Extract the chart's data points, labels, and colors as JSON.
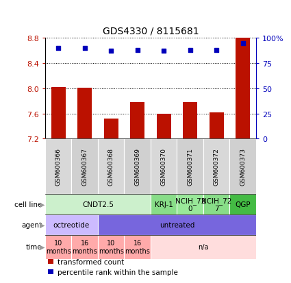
{
  "title": "GDS4330 / 8115681",
  "samples": [
    "GSM600366",
    "GSM600367",
    "GSM600368",
    "GSM600369",
    "GSM600370",
    "GSM600371",
    "GSM600372",
    "GSM600373"
  ],
  "bar_values": [
    8.02,
    8.01,
    7.52,
    7.78,
    7.6,
    7.78,
    7.62,
    8.82
  ],
  "dot_values": [
    90,
    90,
    87,
    88,
    87,
    88,
    88,
    95
  ],
  "ylim": [
    7.2,
    8.8
  ],
  "y_ticks": [
    7.2,
    7.6,
    8.0,
    8.4,
    8.8
  ],
  "y2_ticks": [
    0,
    25,
    50,
    75,
    100
  ],
  "y2_labels": [
    "0",
    "25",
    "50",
    "75",
    "100%"
  ],
  "bar_color": "#bb1100",
  "dot_color": "#0000bb",
  "bar_bottom": 7.2,
  "cell_line_groups": [
    {
      "label": "CNDT2.5",
      "start": 0,
      "end": 4,
      "color": "#ccf0cc"
    },
    {
      "label": "KRJ-1",
      "start": 4,
      "end": 5,
      "color": "#88dd88"
    },
    {
      "label": "NCIH_72\n0",
      "start": 5,
      "end": 6,
      "color": "#99e899"
    },
    {
      "label": "NCIH_72\n7",
      "start": 6,
      "end": 7,
      "color": "#88dd88"
    },
    {
      "label": "QGP",
      "start": 7,
      "end": 8,
      "color": "#44bb44"
    }
  ],
  "agent_groups": [
    {
      "label": "octreotide",
      "start": 0,
      "end": 2,
      "color": "#ccbbff"
    },
    {
      "label": "untreated",
      "start": 2,
      "end": 8,
      "color": "#7766dd"
    }
  ],
  "time_groups": [
    {
      "label": "10\nmonths",
      "start": 0,
      "end": 1,
      "color": "#ffaaaa"
    },
    {
      "label": "16\nmonths",
      "start": 1,
      "end": 2,
      "color": "#ffaaaa"
    },
    {
      "label": "10\nmonths",
      "start": 2,
      "end": 3,
      "color": "#ffaaaa"
    },
    {
      "label": "16\nmonths",
      "start": 3,
      "end": 4,
      "color": "#ffaaaa"
    },
    {
      "label": "n/a",
      "start": 4,
      "end": 8,
      "color": "#ffdddd"
    }
  ],
  "legend_items": [
    {
      "color": "#bb1100",
      "label": "transformed count"
    },
    {
      "color": "#0000bb",
      "label": "percentile rank within the sample"
    }
  ],
  "sample_colors": [
    "#d8d8d8",
    "#d0d0d0",
    "#d8d8d8",
    "#d0d0d0",
    "#d8d8d8",
    "#d0d0d0",
    "#d8d8d8",
    "#d0d0d0"
  ],
  "row_labels": [
    "cell line",
    "agent",
    "time"
  ],
  "row_arrow_color": "#999999"
}
